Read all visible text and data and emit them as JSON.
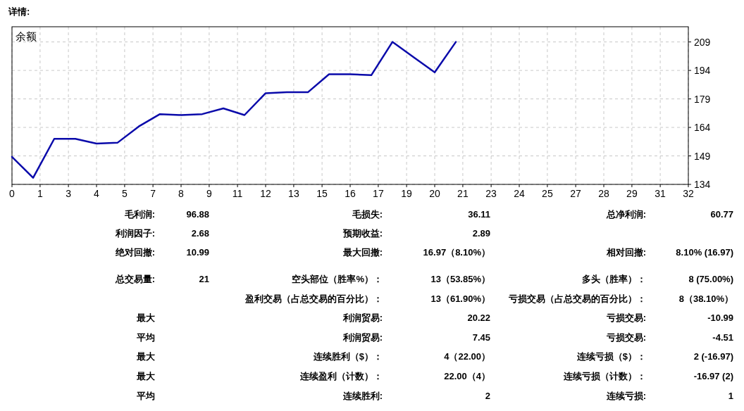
{
  "chart_data": {
    "type": "line",
    "title": "详情:",
    "ylabel": "余额",
    "x": [
      0,
      1,
      2,
      3,
      4,
      5,
      6,
      7,
      8,
      9,
      10,
      11,
      12,
      13,
      14,
      15,
      16,
      17,
      18,
      19,
      20,
      21
    ],
    "series": [
      {
        "color": "#0a0aaa",
        "values": [
          148.5,
          137.5,
          158,
          158,
          155.5,
          156,
          164.5,
          171,
          170.5,
          171,
          174,
          170.5,
          182,
          182.5,
          182.5,
          192,
          192,
          191.5,
          209,
          201,
          193,
          209
        ]
      }
    ],
    "xlim": [
      0,
      32
    ],
    "xticks": [
      0,
      {
        "value": 1.33,
        "label": "1"
      },
      {
        "value": 2.67,
        "label": "3"
      },
      {
        "value": 4,
        "label": "4"
      },
      {
        "value": 5.33,
        "label": "5"
      },
      {
        "value": 6.67,
        "label": "7"
      },
      {
        "value": 8,
        "label": "8"
      },
      {
        "value": 9.33,
        "label": "9"
      },
      {
        "value": 10.67,
        "label": "11"
      },
      {
        "value": 12,
        "label": "12"
      },
      {
        "value": 13.33,
        "label": "13"
      },
      {
        "value": 14.67,
        "label": "15"
      },
      {
        "value": 16,
        "label": "16"
      },
      {
        "value": 17.33,
        "label": "17"
      },
      {
        "value": 18.67,
        "label": "19"
      },
      {
        "value": 20,
        "label": "20"
      },
      {
        "value": 21.33,
        "label": "21"
      },
      {
        "value": 22.67,
        "label": "23"
      },
      {
        "value": 24,
        "label": "24"
      },
      {
        "value": 25.33,
        "label": "25"
      },
      {
        "value": 26.67,
        "label": "27"
      },
      {
        "value": 28,
        "label": "28"
      },
      {
        "value": 29.33,
        "label": "29"
      },
      {
        "value": 30.67,
        "label": "31"
      },
      32
    ],
    "ylim": [
      134,
      217
    ],
    "yticks": [
      134,
      149,
      164,
      179,
      194,
      209
    ],
    "grid": true,
    "marker": "none",
    "line_style": "solid",
    "annotations": [
      "毛利润:",
      "96.88",
      "毛损失:",
      "36.11",
      "总净利润:",
      "60.77",
      "利润因子:",
      "2.68",
      "预期收益:",
      "2.89",
      "绝对回撤:",
      "10.99",
      "最大回撤:",
      "16.97（8.10%）",
      "相对回撤:",
      "8.10% (16.97)",
      "总交易量:",
      "21",
      "空头部位（胜率%）：",
      "13（53.85%）",
      "多头（胜率）：",
      "8 (75.00%)",
      "盈利交易（占总交易的百分比）：",
      "13（61.90%）",
      "亏损交易（占总交易的百分比）：",
      "8（38.10%）",
      "最大",
      "利润贸易:",
      "20.22",
      "亏损交易:",
      "-10.99",
      "平均",
      "利润贸易:",
      "7.45",
      "亏损交易:",
      "-4.51",
      "最大",
      "连续胜利（$）：",
      "4（22.00）",
      "连续亏损（$）：",
      "2 (-16.97)",
      "最大",
      "连续盈利（计数）：",
      "22.00（4）",
      "连续亏损（计数）：",
      "-16.97 (2)",
      "平均",
      "连续胜利:",
      "2",
      "连续亏损:",
      "1"
    ]
  }
}
